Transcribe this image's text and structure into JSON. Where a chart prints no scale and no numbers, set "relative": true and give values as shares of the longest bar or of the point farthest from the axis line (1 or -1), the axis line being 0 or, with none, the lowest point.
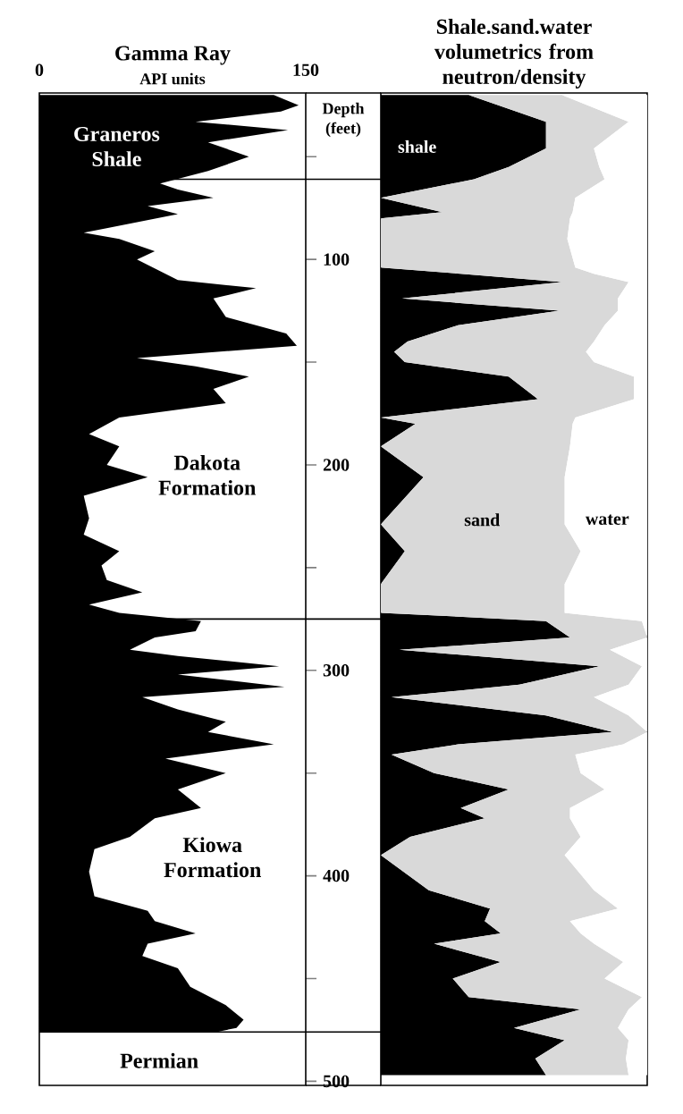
{
  "chart_data": [
    {
      "type": "area",
      "orientation": "horizontal",
      "title": "Gamma Ray",
      "xlabel": "API units",
      "ylabel": "Depth (feet)",
      "xlim": [
        0,
        150
      ],
      "xticks": [
        0,
        150
      ],
      "ylim": [
        502,
        19
      ],
      "yticks": [
        {
          "value": 50,
          "label": null
        },
        100,
        {
          "value": 150,
          "label": null
        },
        200,
        {
          "value": 250,
          "label": null
        },
        300,
        {
          "value": 350,
          "label": null
        },
        400,
        {
          "value": 450,
          "label": null
        },
        500
      ],
      "x": [
        20,
        25,
        28,
        33,
        37,
        43,
        50,
        57,
        63,
        66,
        70,
        74,
        78,
        87,
        90,
        96,
        100,
        110,
        114,
        119,
        128,
        136,
        142,
        148,
        152,
        157,
        163,
        170,
        177,
        185,
        191,
        200,
        206,
        215,
        226,
        234,
        242,
        249,
        256,
        262,
        268,
        272,
        276,
        281,
        284,
        290,
        293,
        298,
        302,
        308,
        313,
        319,
        325,
        330,
        336,
        339,
        343,
        350,
        358,
        367,
        372,
        381,
        387,
        398,
        410,
        417,
        422,
        428,
        433,
        439,
        445,
        454,
        463,
        470,
        474,
        476
      ],
      "series": [
        {
          "color": "#000000",
          "values": [
            132,
            146,
            136,
            88,
            140,
            95,
            118,
            95,
            68,
            78,
            98,
            61,
            78,
            25,
            45,
            65,
            55,
            78,
            122,
            98,
            105,
            139,
            145,
            55,
            88,
            118,
            98,
            105,
            45,
            28,
            45,
            38,
            61,
            25,
            28,
            25,
            45,
            35,
            38,
            58,
            28,
            45,
            91,
            88,
            65,
            51,
            78,
            135,
            78,
            138,
            58,
            78,
            105,
            95,
            132,
            105,
            71,
            105,
            78,
            91,
            65,
            51,
            31,
            28,
            31,
            61,
            65,
            88,
            61,
            58,
            78,
            85,
            105,
            115,
            111,
            100
          ]
        }
      ],
      "ref_lines": [
        {
          "axis": "y",
          "value": 61
        },
        {
          "axis": "y",
          "value": 275
        },
        {
          "axis": "y",
          "value": 476
        }
      ],
      "annotations": [
        "Graneros Shale",
        "Dakota Formation",
        "Kiowa Formation",
        "Permian"
      ]
    },
    {
      "type": "area",
      "orientation": "horizontal",
      "stacked": true,
      "relative": true,
      "title": "Shale.sand.water volumetrics from neutron/density",
      "ylim": [
        502,
        19
      ],
      "x": [
        20,
        33,
        46,
        55,
        61,
        70,
        77,
        80,
        90,
        104,
        107,
        111,
        119,
        125,
        132,
        140,
        145,
        150,
        157,
        168,
        177,
        180,
        191,
        206,
        229,
        242,
        258,
        272,
        276,
        284,
        290,
        298,
        307,
        313,
        322,
        330,
        336,
        341,
        350,
        358,
        367,
        372,
        381,
        390,
        407,
        416,
        422,
        428,
        433,
        442,
        450,
        459,
        465,
        474,
        480,
        489,
        497
      ],
      "series": [
        {
          "name": "shale",
          "color": "#000000",
          "values": [
            0.33,
            0.62,
            0.62,
            0.48,
            0.35,
            0,
            0.23,
            0,
            0,
            0,
            0.3,
            0.68,
            0.08,
            0.67,
            0.29,
            0.1,
            0.05,
            0.09,
            0.48,
            0.59,
            0,
            0.13,
            0,
            0.16,
            0,
            0.09,
            0,
            0,
            0.62,
            0.71,
            0.07,
            0.82,
            0.52,
            0.04,
            0.62,
            0.87,
            0.29,
            0.04,
            0.2,
            0.48,
            0.3,
            0.39,
            0.11,
            0,
            0.18,
            0.41,
            0.39,
            0.45,
            0.2,
            0.45,
            0.27,
            0.33,
            0.75,
            0.5,
            0.69,
            0.58,
            0.62
          ]
        },
        {
          "name": "sand",
          "color": "#d9d9d9",
          "values": [
            0.35,
            0.31,
            0.18,
            0.34,
            0.49,
            0.73,
            0.49,
            0.71,
            0.7,
            0.73,
            0.5,
            0.25,
            0.81,
            0.22,
            0.55,
            0.7,
            0.72,
            0.71,
            0.47,
            0.36,
            0.73,
            0.59,
            0.71,
            0.53,
            0.69,
            0.66,
            0.69,
            0.69,
            0.36,
            0.29,
            0.79,
            0.16,
            0.41,
            0.76,
            0.31,
            0.13,
            0.62,
            0.69,
            0.55,
            0.36,
            0.41,
            0.32,
            0.64,
            0.69,
            0.62,
            0.48,
            0.32,
            0.3,
            0.6,
            0.46,
            0.57,
            0.65,
            0.18,
            0.39,
            0.24,
            0.34,
            0.31
          ]
        },
        {
          "name": "water",
          "color": "#ffffff",
          "values": [
            0.32,
            0.07,
            0.2,
            0.18,
            0.16,
            0.27,
            0.28,
            0.29,
            0.3,
            0.27,
            0.2,
            0.07,
            0.11,
            0.11,
            0.16,
            0.2,
            0.23,
            0.2,
            0.05,
            0.05,
            0.27,
            0.28,
            0.29,
            0.31,
            0.31,
            0.25,
            0.31,
            0.31,
            0.02,
            0,
            0.14,
            0.02,
            0.07,
            0.2,
            0.07,
            0,
            0.09,
            0.27,
            0.25,
            0.16,
            0.29,
            0.29,
            0.25,
            0.31,
            0.2,
            0.11,
            0.29,
            0.25,
            0.2,
            0.09,
            0.16,
            0.02,
            0.07,
            0.11,
            0.07,
            0.08,
            0.07
          ]
        }
      ]
    }
  ]
}
